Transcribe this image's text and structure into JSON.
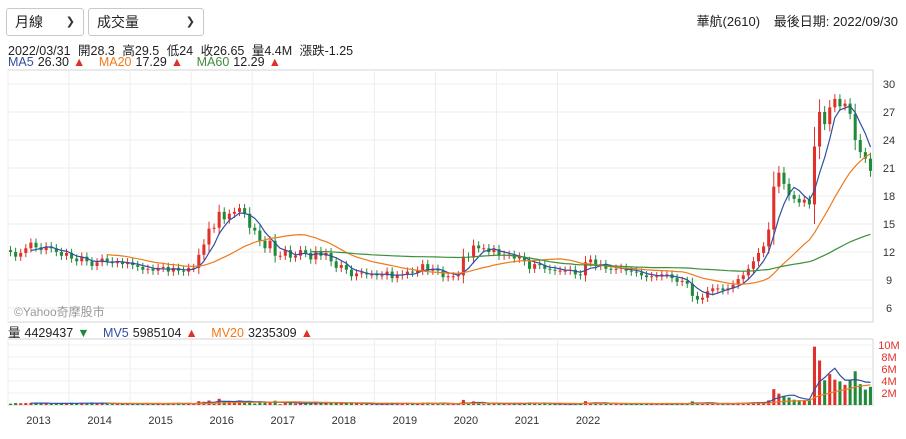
{
  "controls": {
    "period": "月線",
    "indicator": "成交量"
  },
  "stock": {
    "name": "華航(2610)",
    "last_date_label": "最後日期: 2022/09/30"
  },
  "ohlc": {
    "date": "2022/03/31",
    "open": "開28.3",
    "high": "高29.5",
    "low": "低24",
    "close": "收26.65",
    "volume": "量4.4M",
    "change": "漲跌-1.25"
  },
  "ma": {
    "ma5_label": "MA5",
    "ma5_value": "26.30",
    "ma20_label": "MA20",
    "ma20_value": "17.29",
    "ma60_label": "MA60",
    "ma60_value": "12.29"
  },
  "vol": {
    "label": "量",
    "value": "4429437",
    "mv5_label": "MV5",
    "mv5_value": "5985104",
    "mv20_label": "MV20",
    "mv20_value": "3235309"
  },
  "watermark": "©Yahoo奇摩股市",
  "colors": {
    "up": "#e0302a",
    "down": "#1f8a3a",
    "ma5": "#2f4fa3",
    "ma20": "#f07a1a",
    "ma60": "#3c8f3c"
  },
  "chart_data": {
    "type": "candlestick",
    "price_ticks": [
      6,
      9,
      12,
      15,
      18,
      21,
      24,
      27,
      30
    ],
    "price_range": [
      4.5,
      31.5
    ],
    "volume_ticks": [
      "2M",
      "4M",
      "6M",
      "8M",
      "10M"
    ],
    "volume_range_millions": [
      0,
      11
    ],
    "years": [
      "2013",
      "2014",
      "2015",
      "2016",
      "2017",
      "2018",
      "2019",
      "2020",
      "2021",
      "2022"
    ],
    "start_year": 2013,
    "series_names": {
      "ma5": "MA5",
      "ma20": "MA20",
      "ma60": "MA60",
      "mv5": "MV5",
      "mv20": "MV20"
    },
    "closes": [
      12.0,
      11.5,
      11.9,
      12.4,
      13.0,
      12.5,
      12.2,
      12.6,
      12.4,
      12.0,
      11.6,
      11.9,
      11.3,
      11.0,
      11.5,
      11.0,
      10.5,
      10.9,
      11.3,
      11.0,
      10.8,
      10.9,
      10.7,
      10.9,
      10.6,
      10.4,
      10.1,
      10.2,
      10.0,
      10.3,
      10.4,
      9.9,
      10.3,
      10.0,
      9.9,
      10.3,
      10.3,
      11.7,
      12.8,
      14.5,
      14.6,
      16.3,
      15.5,
      16.1,
      16.3,
      16.7,
      16.1,
      14.6,
      14.3,
      13.2,
      12.4,
      13.2,
      11.6,
      11.6,
      12.2,
      11.4,
      11.6,
      12.2,
      11.9,
      11.2,
      12.1,
      11.6,
      11.9,
      11.0,
      10.3,
      10.6,
      10.1,
      9.4,
      9.7,
      9.8,
      9.6,
      9.6,
      9.5,
      9.5,
      9.9,
      9.2,
      9.5,
      9.6,
      9.9,
      9.8,
      10.0,
      10.7,
      10.0,
      10.2,
      10.0,
      9.3,
      9.4,
      9.4,
      9.5,
      11.5,
      11.4,
      12.7,
      12.4,
      12.4,
      12.0,
      12.3,
      11.6,
      11.7,
      11.7,
      11.3,
      11.5,
      11.0,
      10.2,
      10.7,
      10.6,
      10.2,
      10.1,
      10.0,
      10.0,
      10.0,
      10.1,
      9.6,
      9.5,
      10.9,
      11.2,
      10.5,
      10.7,
      10.2,
      10.1,
      10.2,
      10.3,
      10.0,
      9.9,
      9.8,
      9.5,
      9.3,
      9.4,
      9.4,
      9.6,
      9.6,
      9.2,
      8.8,
      8.9,
      8.6,
      7.3,
      6.9,
      7.1,
      7.8,
      8.1,
      8.1,
      7.9,
      8.1,
      8.5,
      9.1,
      9.5,
      10.2,
      11.0,
      11.9,
      12.6,
      14.4,
      19.0,
      20.5,
      19.3,
      18.1,
      17.7,
      17.3,
      17.6,
      17.1,
      23.3,
      27.0,
      25.7,
      27.5,
      28.4,
      27.6,
      27.9,
      26.8,
      24.0,
      22.7,
      22.0,
      20.7
    ]
  }
}
